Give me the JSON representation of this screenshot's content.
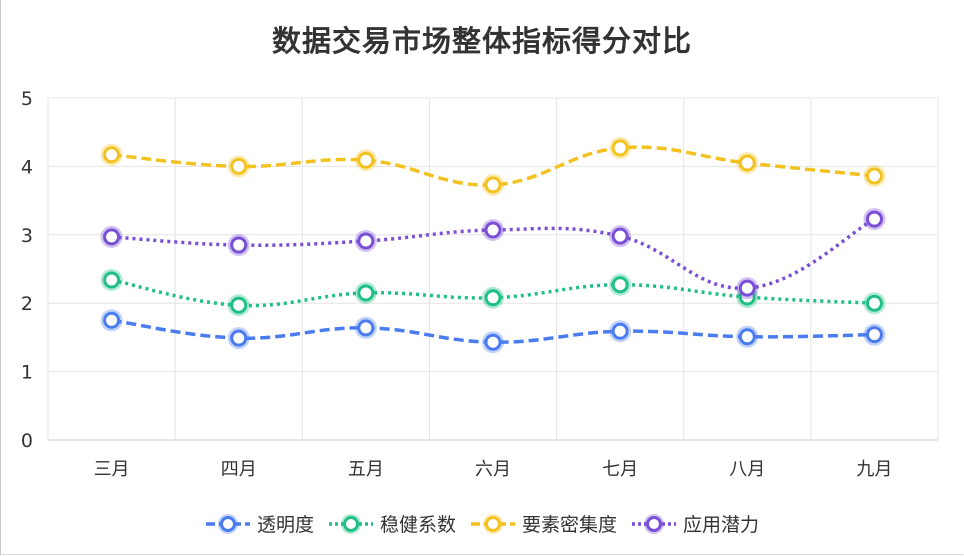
{
  "chart_data": {
    "type": "line",
    "title": "数据交易市场整体指标得分对比",
    "categories": [
      "三月",
      "四月",
      "五月",
      "六月",
      "七月",
      "八月",
      "九月"
    ],
    "ylim": [
      0,
      5
    ],
    "yticks": [
      "0",
      "1",
      "2",
      "3",
      "4",
      "5"
    ],
    "grid": true,
    "legend_position": "bottom",
    "series": [
      {
        "name": "透明度",
        "color": "#4a7cf0",
        "dash": "dashed",
        "values": [
          1.75,
          1.49,
          1.64,
          1.43,
          1.59,
          1.51,
          1.54
        ]
      },
      {
        "name": "稳健系数",
        "color": "#1fbf86",
        "dash": "dotted",
        "values": [
          2.34,
          1.97,
          2.15,
          2.08,
          2.27,
          2.09,
          2.0
        ]
      },
      {
        "name": "要素密集度",
        "color": "#f3c221",
        "dash": "dashed",
        "values": [
          4.17,
          4.0,
          4.09,
          3.73,
          4.27,
          4.05,
          3.86
        ]
      },
      {
        "name": "应用潜力",
        "color": "#7a4fd6",
        "dash": "dotted",
        "values": [
          2.97,
          2.85,
          2.91,
          3.07,
          2.98,
          2.22,
          3.23
        ]
      }
    ]
  }
}
